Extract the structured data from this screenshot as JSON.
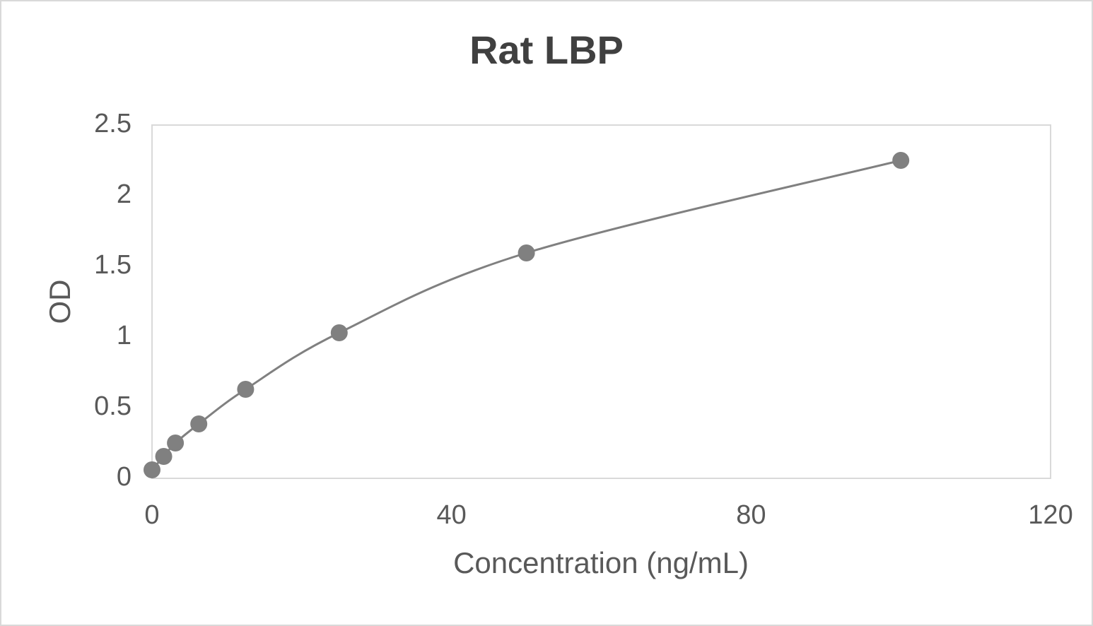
{
  "chart_data": {
    "type": "scatter",
    "title": "Rat LBP",
    "x_label": "Concentration (ng/mL)",
    "y_label": "OD",
    "x": [
      0,
      1.5625,
      3.125,
      6.25,
      12.5,
      25,
      50,
      100
    ],
    "values": [
      0.06,
      0.155,
      0.25,
      0.385,
      0.63,
      1.03,
      1.595,
      2.25
    ],
    "color": "#808080",
    "smooth": true,
    "grid": false,
    "xlim": [
      0,
      120
    ],
    "xticks": [
      0,
      40,
      80,
      120
    ],
    "ylim": [
      0,
      2.5
    ],
    "yticks": [
      0,
      0.5,
      1,
      1.5,
      2,
      2.5
    ]
  }
}
